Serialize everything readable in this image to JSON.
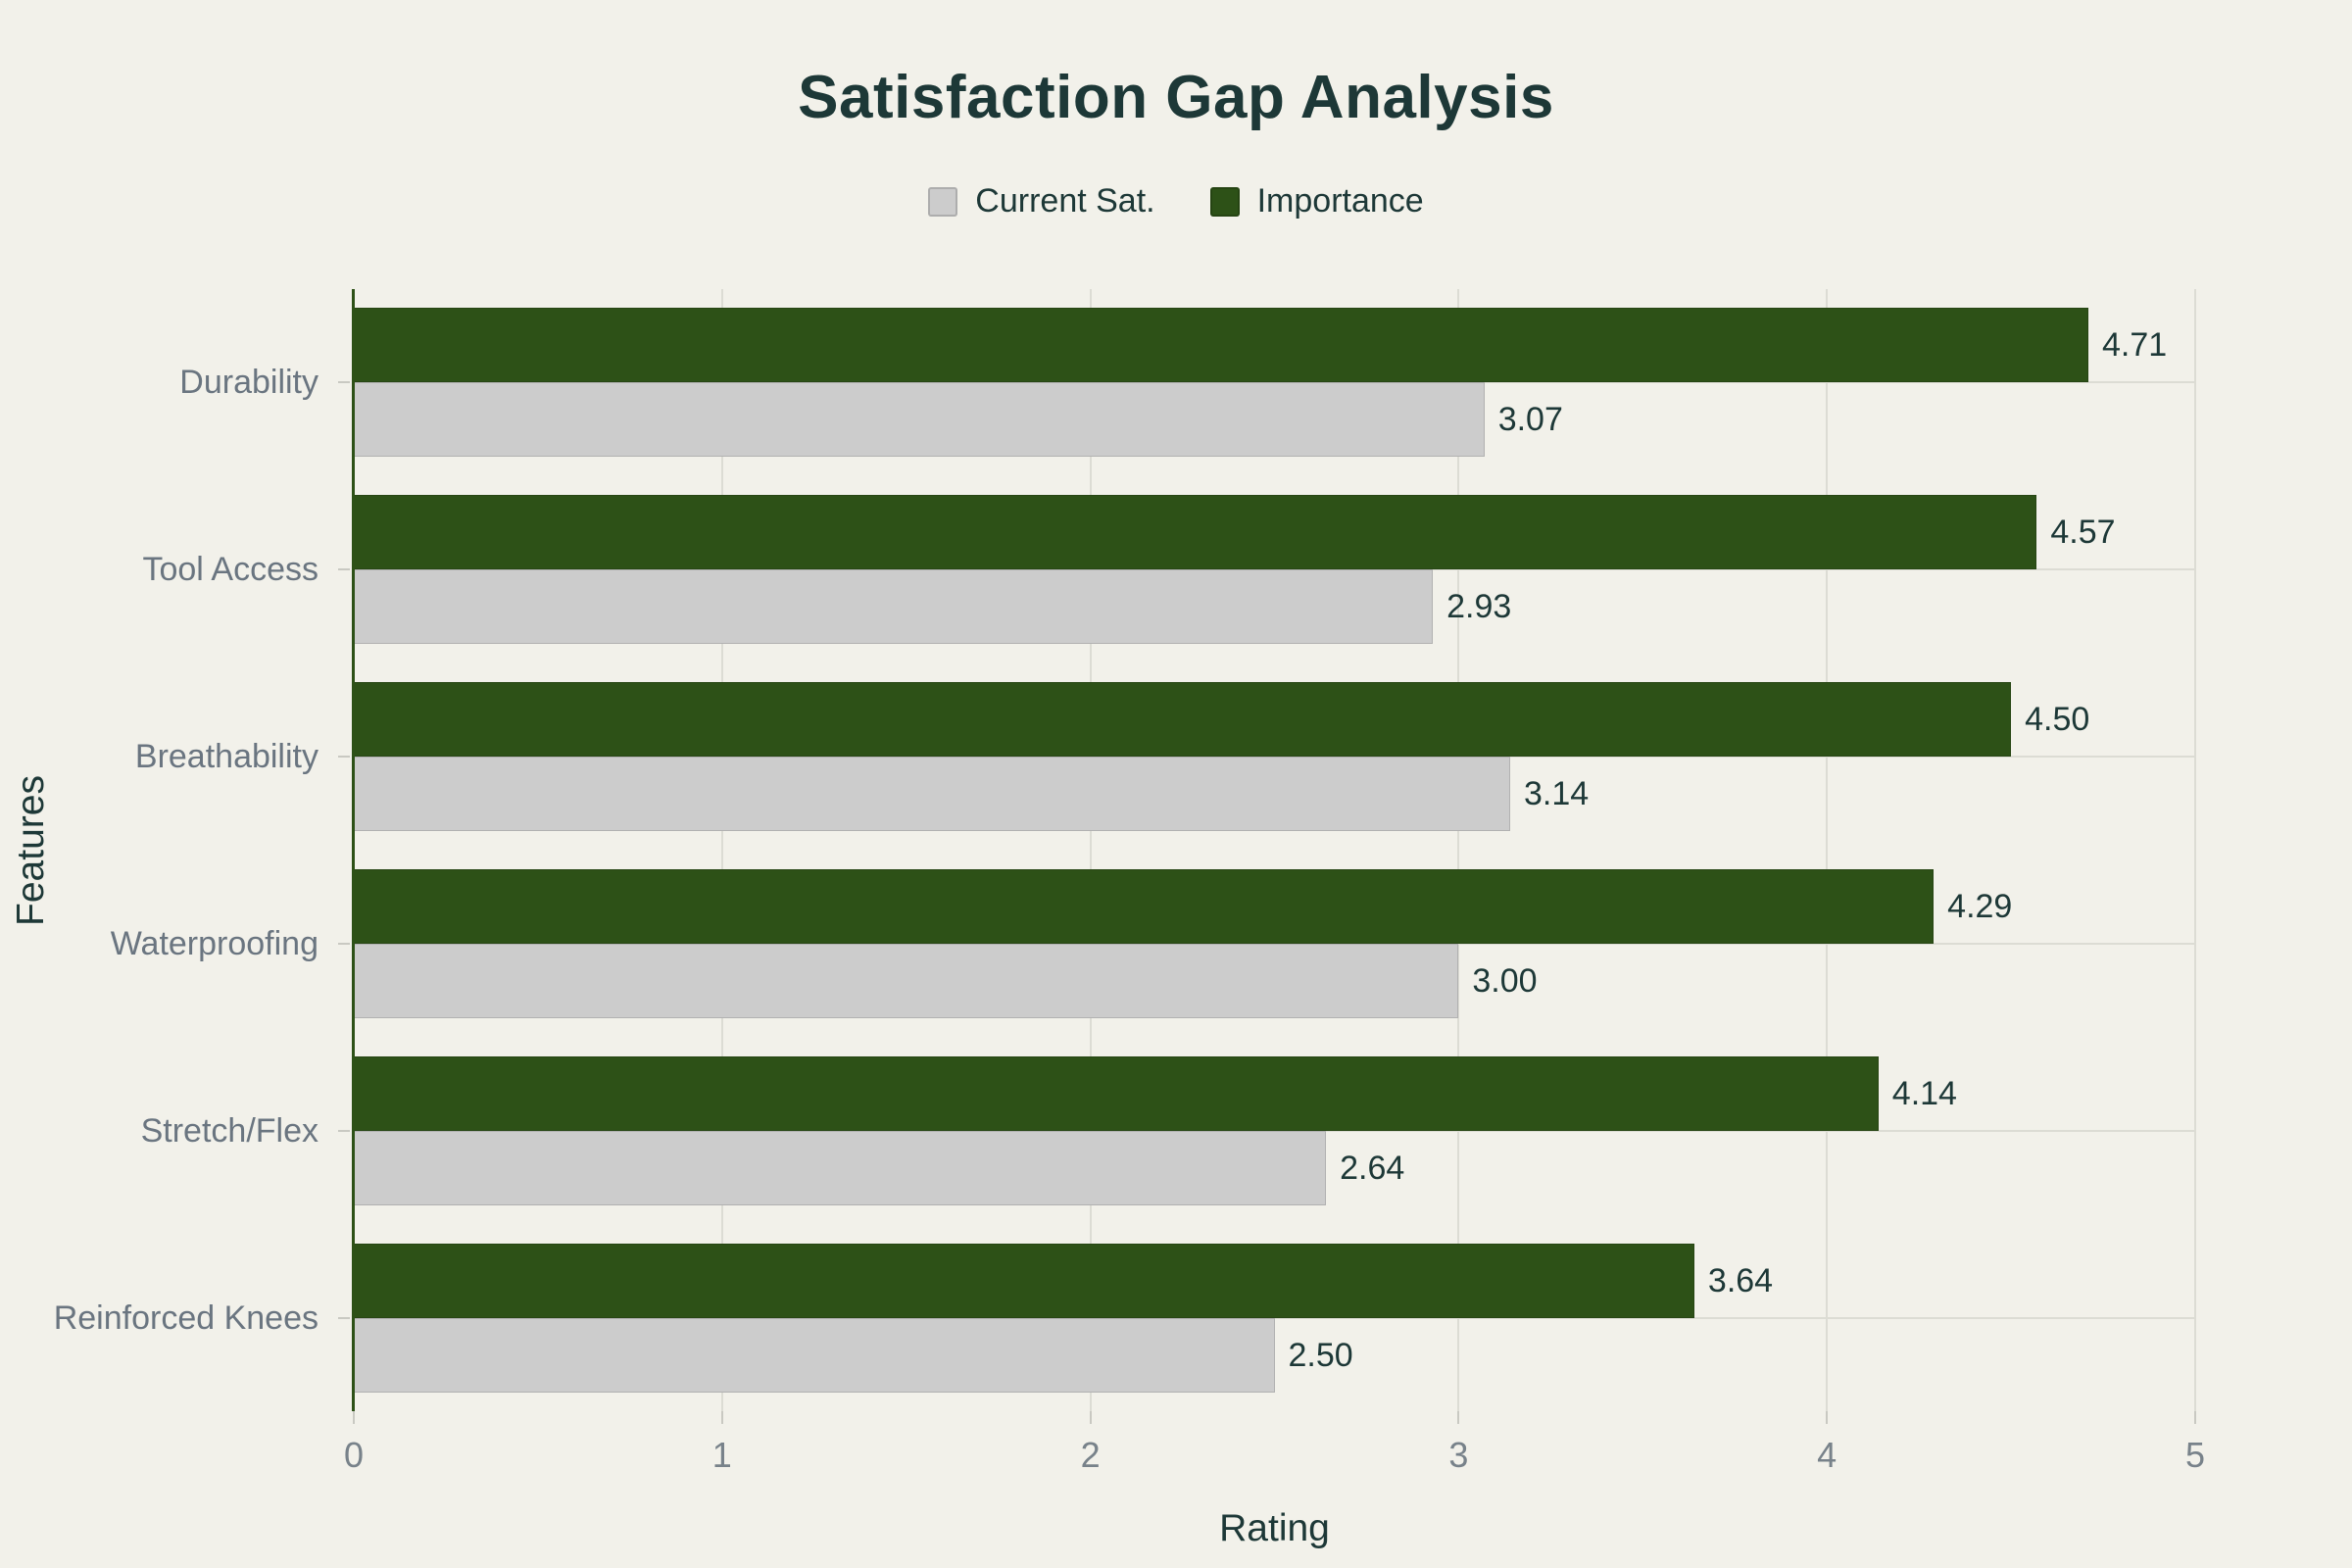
{
  "page": {
    "background_color": "#f2f1ea"
  },
  "chart_data": {
    "type": "bar",
    "orientation": "horizontal",
    "title": "Satisfaction Gap Analysis",
    "xlabel": "Rating",
    "ylabel": "Features",
    "xlim": [
      0,
      5
    ],
    "x_ticks": [
      0,
      1,
      2,
      3,
      4,
      5
    ],
    "grid": true,
    "legend_position": "top-center",
    "value_label_decimals": 2,
    "categories": [
      "Durability",
      "Tool Access",
      "Breathability",
      "Waterproofing",
      "Stretch/Flex",
      "Reinforced Knees"
    ],
    "series": [
      {
        "name": "Current Sat.",
        "color": "#cccccc",
        "values": [
          3.07,
          2.93,
          3.14,
          3.0,
          2.64,
          2.5
        ]
      },
      {
        "name": "Importance",
        "color": "#2d5117",
        "values": [
          4.71,
          4.57,
          4.5,
          4.29,
          4.14,
          3.64
        ]
      }
    ],
    "colors": {
      "title_text": "#1d3837",
      "value_label_text": "#1d3837",
      "category_label_text": "#6a7580",
      "tick_label_text": "#78828a",
      "gridline": "#dcdcd4",
      "axis_spine": "#2d5117",
      "background": "#f2f1ea"
    }
  }
}
